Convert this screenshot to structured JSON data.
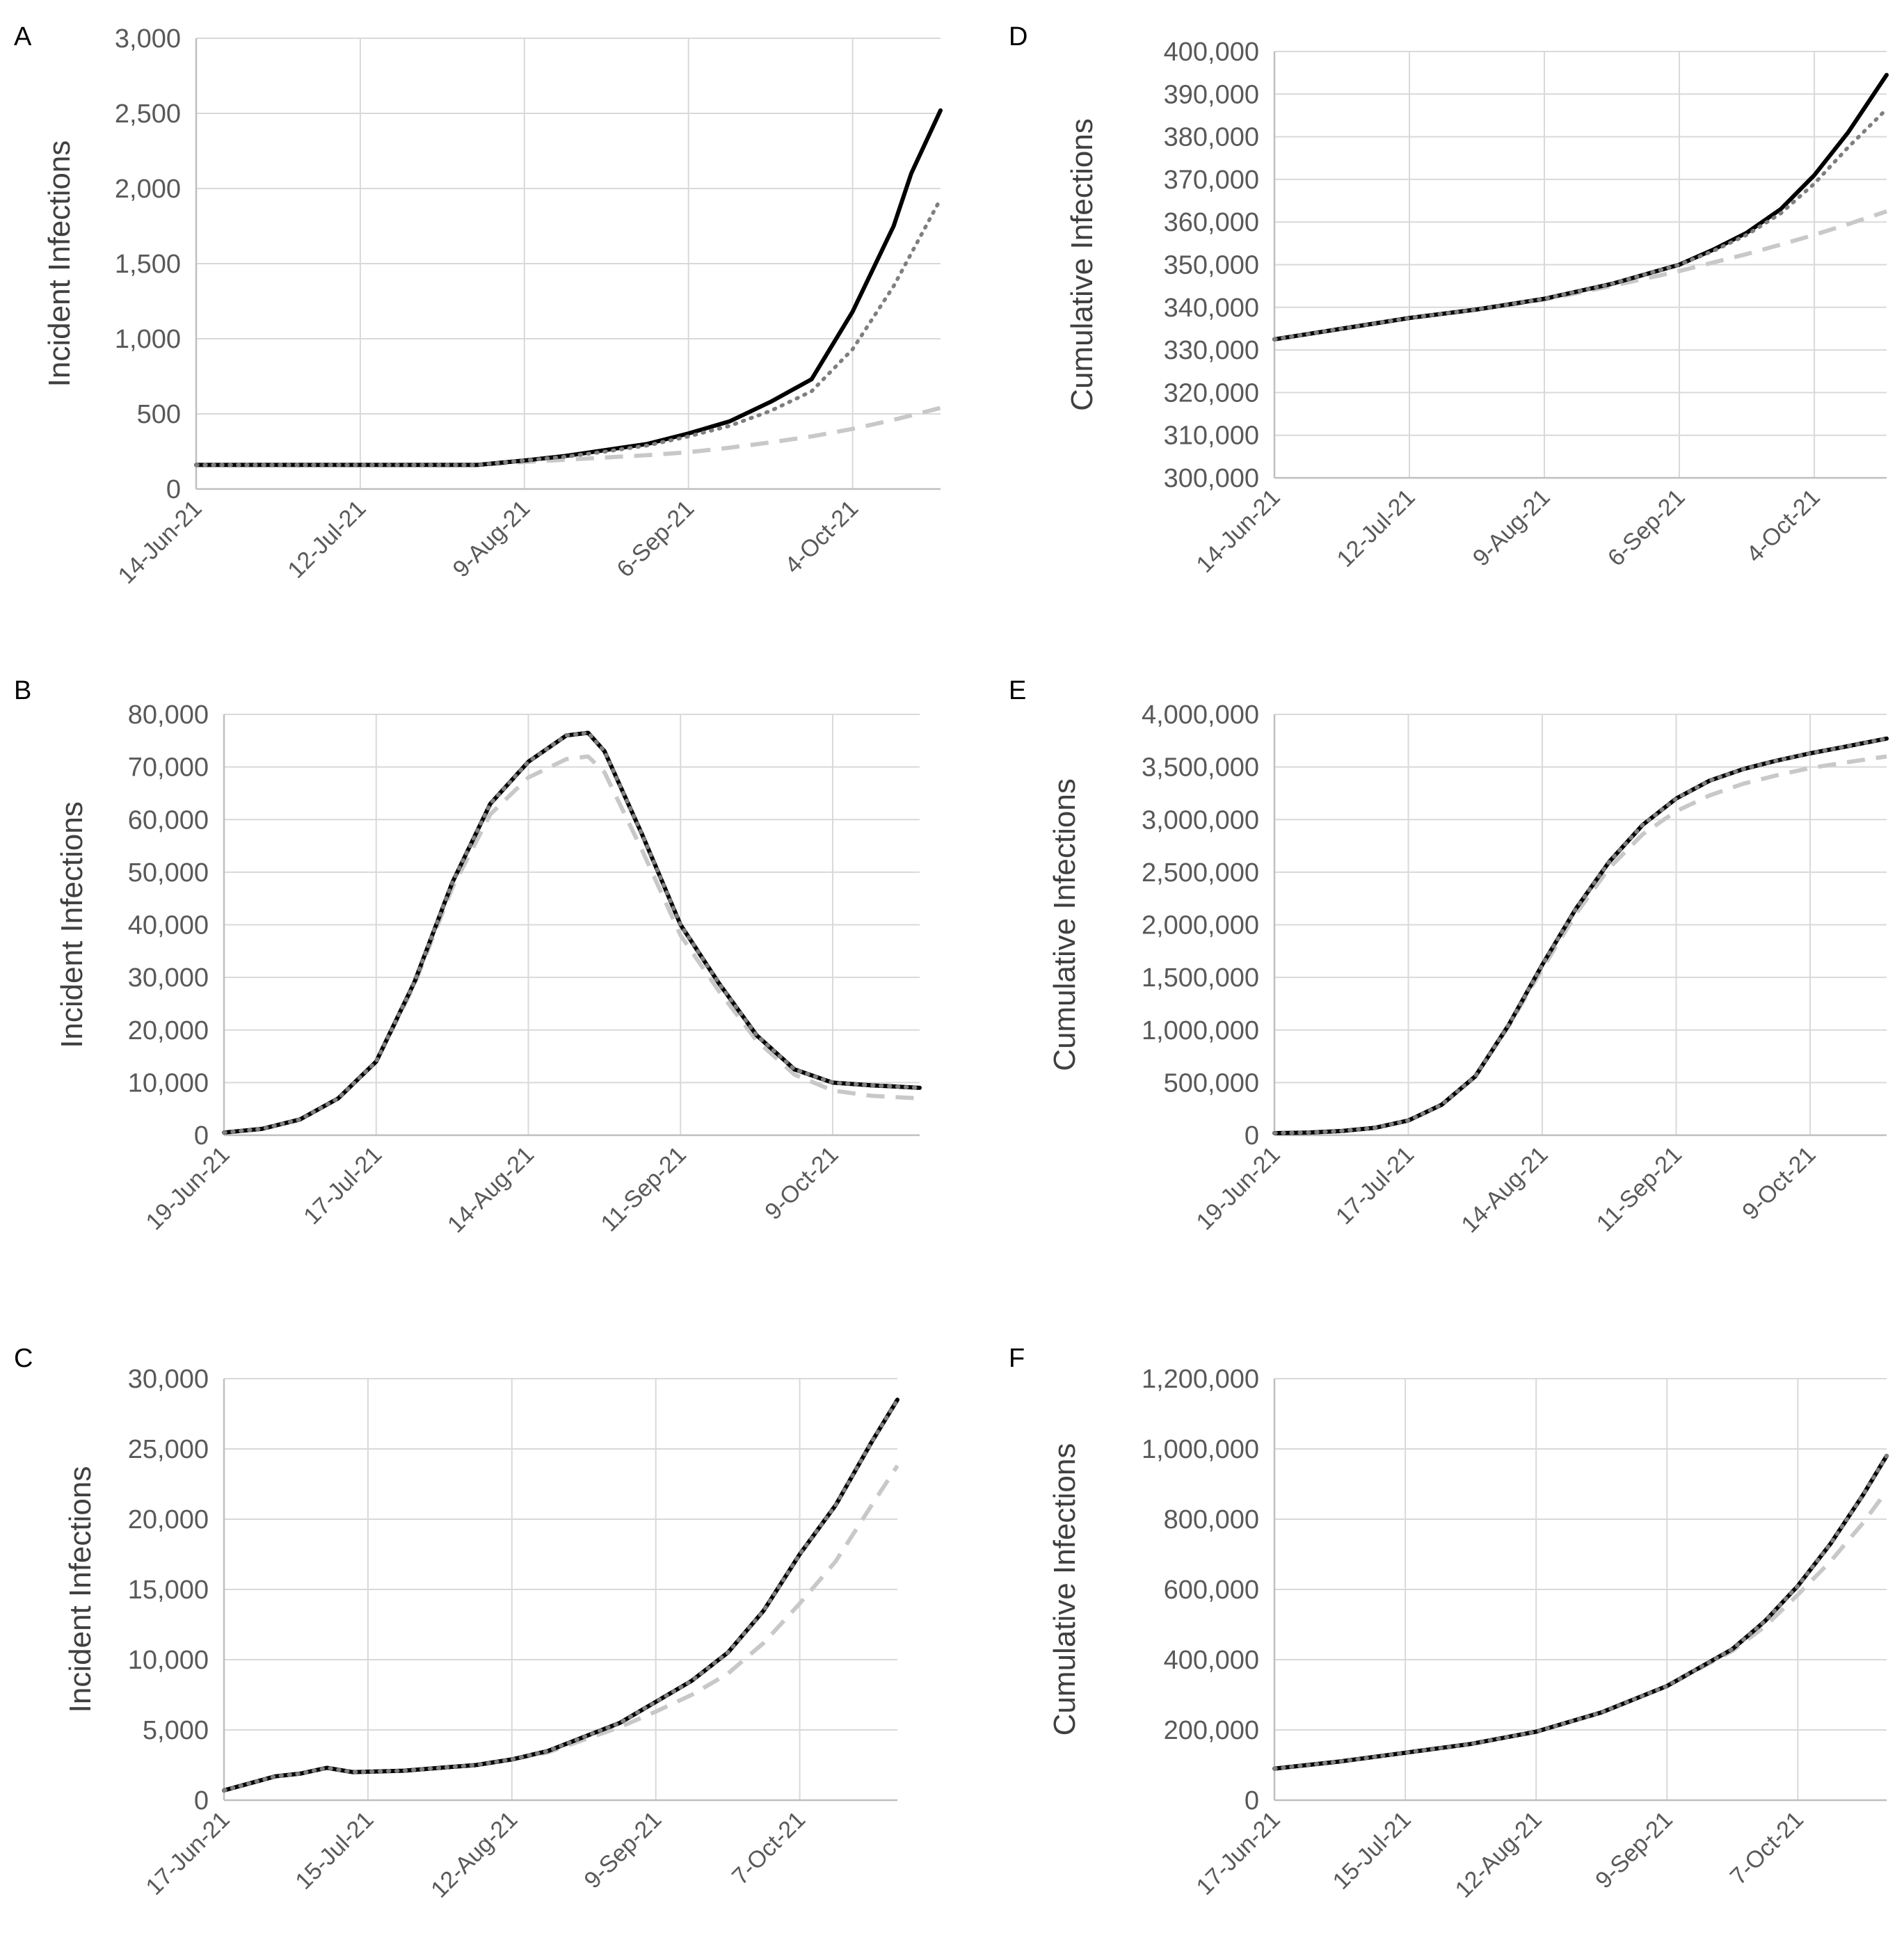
{
  "colors": {
    "solid": "#000000",
    "dotted": "#7f7f7f",
    "dashed": "#c8c8c8",
    "grid": "#d9d9d9",
    "tick_text": "#595959"
  },
  "chart_data": [
    {
      "panel": "A",
      "type": "line",
      "ylabel": "Incident Infections",
      "yticks": [
        "0",
        "500",
        "1,000",
        "1,500",
        "2,000",
        "2,500",
        "3,000"
      ],
      "ylim": [
        0,
        3000
      ],
      "xlim": [
        0,
        127
      ],
      "xtick_positions": [
        0,
        28,
        56,
        84,
        112
      ],
      "xtick_labels": [
        "14-Jun-21",
        "12-Jul-21",
        "9-Aug-21",
        "6-Sep-21",
        "4-Oct-21"
      ],
      "series": [
        {
          "name": "solid",
          "style": "solid",
          "x": [
            0,
            40,
            48,
            56,
            63,
            70,
            77,
            84,
            91,
            98,
            105,
            112,
            119,
            122,
            127
          ],
          "y": [
            160,
            160,
            160,
            190,
            220,
            260,
            300,
            370,
            450,
            580,
            730,
            1180,
            1750,
            2100,
            2520
          ]
        },
        {
          "name": "dotted",
          "style": "dotted",
          "x": [
            0,
            40,
            48,
            56,
            63,
            70,
            77,
            84,
            91,
            98,
            105,
            112,
            119,
            127
          ],
          "y": [
            160,
            160,
            160,
            190,
            215,
            250,
            290,
            350,
            420,
            520,
            650,
            930,
            1350,
            1930
          ]
        },
        {
          "name": "dashed",
          "style": "dashed",
          "x": [
            0,
            40,
            48,
            56,
            63,
            70,
            77,
            84,
            91,
            98,
            105,
            112,
            119,
            127
          ],
          "y": [
            160,
            160,
            160,
            180,
            195,
            210,
            225,
            245,
            275,
            310,
            350,
            400,
            460,
            540
          ]
        }
      ]
    },
    {
      "panel": "B",
      "type": "line",
      "ylabel": "Incident Infections",
      "yticks": [
        "0",
        "10,000",
        "20,000",
        "30,000",
        "40,000",
        "50,000",
        "60,000",
        "70,000",
        "80,000"
      ],
      "ylim": [
        0,
        80000
      ],
      "xlim": [
        0,
        128
      ],
      "xtick_positions": [
        0,
        28,
        56,
        84,
        112
      ],
      "xtick_labels": [
        "19-Jun-21",
        "17-Jul-21",
        "14-Aug-21",
        "11-Sep-21",
        "9-Oct-21"
      ],
      "series": [
        {
          "name": "solid",
          "style": "solid",
          "x": [
            0,
            7,
            14,
            21,
            28,
            35,
            42,
            49,
            56,
            63,
            67,
            70,
            77,
            84,
            91,
            98,
            105,
            112,
            119,
            128
          ],
          "y": [
            500,
            1200,
            3000,
            7000,
            14000,
            29000,
            48000,
            63000,
            71000,
            76000,
            76500,
            73000,
            57000,
            40000,
            29000,
            19000,
            12500,
            10000,
            9500,
            9000
          ]
        },
        {
          "name": "dotted",
          "style": "dotted",
          "x": [
            0,
            7,
            14,
            21,
            28,
            35,
            42,
            49,
            56,
            63,
            67,
            70,
            77,
            84,
            91,
            98,
            105,
            112,
            119,
            128
          ],
          "y": [
            500,
            1200,
            3000,
            7000,
            14000,
            29000,
            48000,
            63000,
            71000,
            76000,
            76500,
            73000,
            57000,
            40000,
            29000,
            19000,
            12500,
            10000,
            9500,
            9000
          ]
        },
        {
          "name": "dashed",
          "style": "dashed",
          "x": [
            0,
            7,
            14,
            21,
            28,
            35,
            42,
            49,
            56,
            63,
            67,
            70,
            77,
            84,
            91,
            98,
            105,
            112,
            119,
            128
          ],
          "y": [
            500,
            1200,
            3000,
            7000,
            14000,
            28500,
            47000,
            61000,
            68000,
            71500,
            72000,
            69000,
            54000,
            38000,
            27500,
            18000,
            11500,
            8500,
            7500,
            7000
          ]
        }
      ]
    },
    {
      "panel": "C",
      "type": "line",
      "ylabel": "Incident Infections",
      "yticks": [
        "0",
        "5,000",
        "10,000",
        "15,000",
        "20,000",
        "25,000",
        "30,000"
      ],
      "ylim": [
        0,
        30000
      ],
      "xlim": [
        0,
        131
      ],
      "xtick_positions": [
        0,
        28,
        56,
        84,
        112
      ],
      "xtick_labels": [
        "17-Jun-21",
        "15-Jul-21",
        "12-Aug-21",
        "9-Sep-21",
        "7-Oct-21"
      ],
      "series": [
        {
          "name": "solid",
          "style": "solid",
          "x": [
            0,
            5,
            10,
            15,
            20,
            25,
            35,
            42,
            49,
            56,
            63,
            70,
            77,
            84,
            91,
            98,
            105,
            112,
            119,
            126,
            131
          ],
          "y": [
            700,
            1200,
            1700,
            1900,
            2300,
            2000,
            2100,
            2300,
            2500,
            2900,
            3500,
            4500,
            5500,
            7000,
            8500,
            10500,
            13500,
            17500,
            21000,
            25500,
            28500
          ]
        },
        {
          "name": "dotted",
          "style": "dotted",
          "x": [
            0,
            5,
            10,
            15,
            20,
            25,
            35,
            42,
            49,
            56,
            63,
            70,
            77,
            84,
            91,
            98,
            105,
            112,
            119,
            126,
            131
          ],
          "y": [
            700,
            1200,
            1700,
            1900,
            2300,
            2000,
            2100,
            2300,
            2500,
            2900,
            3500,
            4500,
            5500,
            7000,
            8500,
            10500,
            13500,
            17500,
            21000,
            25500,
            28500
          ]
        },
        {
          "name": "dashed",
          "style": "dashed",
          "x": [
            0,
            5,
            10,
            15,
            20,
            25,
            35,
            42,
            49,
            56,
            63,
            70,
            77,
            84,
            91,
            98,
            105,
            112,
            119,
            126,
            131
          ],
          "y": [
            700,
            1200,
            1700,
            1900,
            2300,
            2000,
            2100,
            2300,
            2500,
            2900,
            3400,
            4300,
            5200,
            6300,
            7500,
            9000,
            11200,
            14000,
            17000,
            21000,
            23800
          ]
        }
      ]
    },
    {
      "panel": "D",
      "type": "line",
      "ylabel": "Cumulative Infections",
      "yticks": [
        "300,000",
        "310,000",
        "320,000",
        "330,000",
        "340,000",
        "350,000",
        "360,000",
        "370,000",
        "380,000",
        "390,000",
        "400,000"
      ],
      "ylim": [
        300000,
        400000
      ],
      "xlim": [
        0,
        127
      ],
      "xtick_positions": [
        0,
        28,
        56,
        84,
        112
      ],
      "xtick_labels": [
        "14-Jun-21",
        "12-Jul-21",
        "9-Aug-21",
        "6-Sep-21",
        "4-Oct-21"
      ],
      "series": [
        {
          "name": "solid",
          "style": "solid",
          "x": [
            0,
            14,
            28,
            42,
            56,
            70,
            84,
            91,
            98,
            105,
            112,
            119,
            127
          ],
          "y": [
            332500,
            335000,
            337500,
            339500,
            342000,
            345500,
            350000,
            353500,
            357500,
            363000,
            371000,
            381000,
            394500
          ]
        },
        {
          "name": "dotted",
          "style": "dotted",
          "x": [
            0,
            14,
            28,
            42,
            56,
            70,
            84,
            91,
            98,
            105,
            112,
            119,
            127
          ],
          "y": [
            332500,
            335000,
            337500,
            339500,
            342000,
            345500,
            350000,
            353200,
            357000,
            362000,
            369000,
            377500,
            386500
          ]
        },
        {
          "name": "dashed",
          "style": "dashed",
          "x": [
            0,
            14,
            28,
            42,
            56,
            70,
            84,
            91,
            98,
            105,
            112,
            119,
            127
          ],
          "y": [
            332500,
            335000,
            337500,
            339500,
            341800,
            345000,
            348500,
            350500,
            352500,
            354700,
            357000,
            359500,
            362500
          ]
        }
      ]
    },
    {
      "panel": "E",
      "type": "line",
      "ylabel": "Cumulative Infections",
      "yticks": [
        "0",
        "500,000",
        "1,000,000",
        "1,500,000",
        "2,000,000",
        "2,500,000",
        "3,000,000",
        "3,500,000",
        "4,000,000"
      ],
      "ylim": [
        0,
        4000000
      ],
      "xlim": [
        0,
        128
      ],
      "xtick_positions": [
        0,
        28,
        56,
        84,
        112
      ],
      "xtick_labels": [
        "19-Jun-21",
        "17-Jul-21",
        "14-Aug-21",
        "11-Sep-21",
        "9-Oct-21"
      ],
      "series": [
        {
          "name": "solid",
          "style": "solid",
          "x": [
            0,
            7,
            14,
            21,
            28,
            35,
            42,
            49,
            56,
            63,
            70,
            77,
            84,
            91,
            98,
            105,
            112,
            119,
            128
          ],
          "y": [
            20000,
            25000,
            40000,
            70000,
            140000,
            290000,
            560000,
            1050000,
            1620000,
            2150000,
            2600000,
            2950000,
            3200000,
            3370000,
            3480000,
            3560000,
            3630000,
            3690000,
            3770000
          ]
        },
        {
          "name": "dotted",
          "style": "dotted",
          "x": [
            0,
            7,
            14,
            21,
            28,
            35,
            42,
            49,
            56,
            63,
            70,
            77,
            84,
            91,
            98,
            105,
            112,
            119,
            128
          ],
          "y": [
            20000,
            25000,
            40000,
            70000,
            140000,
            290000,
            560000,
            1050000,
            1620000,
            2150000,
            2600000,
            2950000,
            3200000,
            3370000,
            3480000,
            3560000,
            3630000,
            3690000,
            3770000
          ]
        },
        {
          "name": "dashed",
          "style": "dashed",
          "x": [
            0,
            7,
            14,
            21,
            28,
            35,
            42,
            49,
            56,
            63,
            70,
            77,
            84,
            91,
            98,
            105,
            112,
            119,
            128
          ],
          "y": [
            20000,
            25000,
            40000,
            70000,
            140000,
            290000,
            560000,
            1040000,
            1580000,
            2100000,
            2540000,
            2860000,
            3080000,
            3230000,
            3340000,
            3420000,
            3490000,
            3540000,
            3600000
          ]
        }
      ]
    },
    {
      "panel": "F",
      "type": "line",
      "ylabel": "Cumulative Infections",
      "yticks": [
        "0",
        "200,000",
        "400,000",
        "600,000",
        "800,000",
        "1,000,000",
        "1,200,000"
      ],
      "ylim": [
        0,
        1200000
      ],
      "xlim": [
        0,
        131
      ],
      "xtick_positions": [
        0,
        28,
        56,
        84,
        112
      ],
      "xtick_labels": [
        "17-Jun-21",
        "15-Jul-21",
        "12-Aug-21",
        "9-Sep-21",
        "7-Oct-21"
      ],
      "series": [
        {
          "name": "solid",
          "style": "solid",
          "x": [
            0,
            14,
            28,
            42,
            56,
            70,
            84,
            98,
            105,
            112,
            119,
            126,
            131
          ],
          "y": [
            90000,
            110000,
            135000,
            160000,
            195000,
            250000,
            325000,
            430000,
            510000,
            610000,
            730000,
            870000,
            980000
          ]
        },
        {
          "name": "dotted",
          "style": "dotted",
          "x": [
            0,
            14,
            28,
            42,
            56,
            70,
            84,
            98,
            105,
            112,
            119,
            126,
            131
          ],
          "y": [
            90000,
            110000,
            135000,
            160000,
            195000,
            250000,
            325000,
            430000,
            510000,
            610000,
            730000,
            870000,
            980000
          ]
        },
        {
          "name": "dashed",
          "style": "dashed",
          "x": [
            0,
            14,
            28,
            42,
            56,
            70,
            84,
            98,
            105,
            112,
            119,
            126,
            131
          ],
          "y": [
            90000,
            110000,
            135000,
            160000,
            195000,
            250000,
            325000,
            425000,
            495000,
            585000,
            680000,
            790000,
            880000
          ]
        }
      ]
    }
  ]
}
